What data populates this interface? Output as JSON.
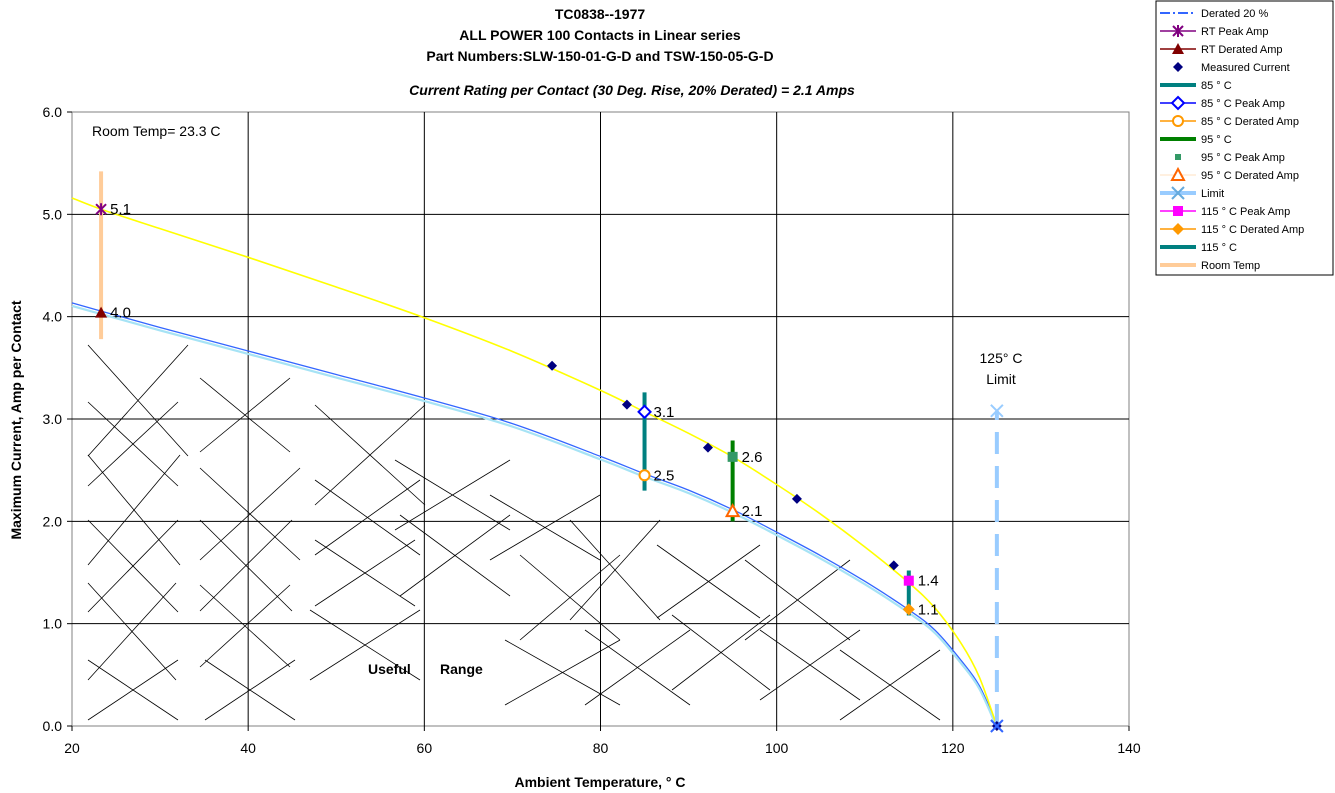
{
  "chart_data": {
    "type": "line",
    "title": [
      "TC0838--1977",
      "ALL POWER 100 Contacts in Linear series",
      "Part Numbers:SLW-150-01-G-D and TSW-150-05-G-D"
    ],
    "subtitle": "Current Rating per Contact (30 Deg. Rise, 20% Derated)  = 2.1 Amps",
    "xlabel": "Ambient Temperature,  ° C",
    "ylabel": "Maximum Current, Amp per Contact",
    "xlim": [
      20,
      140
    ],
    "ylim": [
      0,
      6
    ],
    "xticks": [
      "20",
      "40",
      "60",
      "80",
      "100",
      "120",
      "140"
    ],
    "yticks": [
      "0.0",
      "1.0",
      "2.0",
      "3.0",
      "4.0",
      "5.0",
      "6.0"
    ],
    "grid": true,
    "legend_position": "top-right",
    "annotations": {
      "room_temp": "Room Temp= 23.3 C",
      "limit_line1": "125° C",
      "limit_line2": "Limit",
      "useful": "Useful",
      "range": "Range"
    },
    "series": [
      {
        "name": "Derated 20 %",
        "color": "#a6e3f5",
        "style": "curve",
        "x": [
          20,
          23.3,
          30,
          40,
          50,
          60,
          70,
          80,
          85,
          90,
          95,
          100,
          105,
          110,
          115,
          118,
          121,
          123,
          125
        ],
        "y": [
          4.12,
          4.04,
          3.88,
          3.65,
          3.42,
          3.19,
          2.94,
          2.62,
          2.45,
          2.29,
          2.1,
          1.88,
          1.65,
          1.4,
          1.12,
          0.92,
          0.62,
          0.38,
          0.0
        ]
      },
      {
        "name": "Peak Amp curve",
        "color": "#ffff00",
        "style": "curve",
        "x": [
          20,
          23.3,
          30,
          40,
          50,
          60,
          70,
          80,
          85,
          90,
          95,
          100,
          105,
          110,
          115,
          118,
          121,
          123,
          125
        ],
        "y": [
          5.16,
          5.05,
          4.86,
          4.58,
          4.29,
          3.99,
          3.66,
          3.28,
          3.07,
          2.86,
          2.63,
          2.36,
          2.07,
          1.75,
          1.4,
          1.15,
          0.8,
          0.48,
          0.0
        ]
      },
      {
        "name": "RT Peak Amp",
        "color": "#800080",
        "marker": "star",
        "x": [
          23.3
        ],
        "y": [
          5.05
        ],
        "labels": [
          "5.1"
        ]
      },
      {
        "name": "RT Derated Amp",
        "color": "#800000",
        "marker": "triangle",
        "x": [
          23.3
        ],
        "y": [
          4.04
        ],
        "labels": [
          "4.0"
        ]
      },
      {
        "name": "Measured Current",
        "color": "#000080",
        "marker": "diamond",
        "x": [
          74.5,
          83,
          92.2,
          102.3,
          113.3,
          125
        ],
        "y": [
          3.52,
          3.14,
          2.72,
          2.22,
          1.57,
          0.0
        ]
      },
      {
        "name": "85 ° C",
        "color": "#008080",
        "style": "vbar",
        "x": [
          85,
          85
        ],
        "y": [
          2.3,
          3.26
        ]
      },
      {
        "name": "85  ° C Peak Amp",
        "color": "#0000ff",
        "marker": "diamond-open",
        "x": [
          85
        ],
        "y": [
          3.07
        ],
        "labels": [
          "3.1"
        ]
      },
      {
        "name": "85  ° C Derated Amp",
        "color": "#ff9900",
        "marker": "circle-open",
        "x": [
          85
        ],
        "y": [
          2.45
        ],
        "labels": [
          "2.5"
        ]
      },
      {
        "name": "95  ° C",
        "color": "#008000",
        "style": "vbar",
        "x": [
          95,
          95
        ],
        "y": [
          2.0,
          2.79
        ]
      },
      {
        "name": "95  ° C Peak Amp",
        "color": "#339966",
        "marker": "square",
        "x": [
          95
        ],
        "y": [
          2.63
        ],
        "labels": [
          "2.6"
        ]
      },
      {
        "name": "95  ° C Derated Amp",
        "color": "#ff6600",
        "marker": "triangle-open",
        "x": [
          95
        ],
        "y": [
          2.1
        ],
        "labels": [
          "2.1"
        ]
      },
      {
        "name": "Limit",
        "color": "#99ccff",
        "style": "dashed-vbar",
        "marker": "x",
        "x": [
          125,
          125
        ],
        "y": [
          0,
          3.08
        ]
      },
      {
        "name": "115  ° C Peak Amp",
        "color": "#ff00ff",
        "marker": "square",
        "x": [
          115
        ],
        "y": [
          1.42
        ],
        "labels": [
          "1.4"
        ]
      },
      {
        "name": "115  ° C Derated Amp",
        "color": "#ff9900",
        "marker": "diamond-filled",
        "x": [
          115
        ],
        "y": [
          1.14
        ],
        "labels": [
          "1.1"
        ]
      },
      {
        "name": "115  ° C",
        "color": "#008080",
        "style": "vbar",
        "x": [
          115,
          115
        ],
        "y": [
          1.08,
          1.52
        ]
      },
      {
        "name": "Room Temp",
        "color": "#ffcc99",
        "style": "vbar",
        "x": [
          23.3,
          23.3
        ],
        "y": [
          3.78,
          5.42
        ]
      }
    ],
    "legend": [
      {
        "label": "Derated 20 %",
        "color": "#3366ff",
        "kind": "dashdot"
      },
      {
        "label": "RT Peak Amp",
        "color": "#800080",
        "kind": "star"
      },
      {
        "label": "RT Derated Amp",
        "color": "#800000",
        "kind": "triangle"
      },
      {
        "label": "Measured Current",
        "color": "#000080",
        "kind": "diamond-only"
      },
      {
        "label": "85 ° C",
        "color": "#008080",
        "kind": "thick"
      },
      {
        "label": "85  ° C Peak Amp",
        "color": "#0000ff",
        "kind": "diamond-open"
      },
      {
        "label": "85  ° C Derated Amp",
        "color": "#ff9900",
        "kind": "circle-open"
      },
      {
        "label": "95  ° C",
        "color": "#008000",
        "kind": "thick"
      },
      {
        "label": "95  ° C Peak Amp",
        "color": "#339966",
        "kind": "square-only"
      },
      {
        "label": "95  ° C Derated Amp",
        "color": "#ff6600",
        "kind": "triangle-open-only"
      },
      {
        "label": "Limit",
        "color": "#99ccff",
        "kind": "dashed-x"
      },
      {
        "label": "115  ° C Peak Amp",
        "color": "#ff00ff",
        "kind": "square-line"
      },
      {
        "label": "115  ° C Derated Amp",
        "color": "#ff9900",
        "kind": "diamond-line"
      },
      {
        "label": "115  ° C",
        "color": "#008080",
        "kind": "thick"
      },
      {
        "label": "Room Temp",
        "color": "#ffcc99",
        "kind": "thick"
      }
    ]
  }
}
